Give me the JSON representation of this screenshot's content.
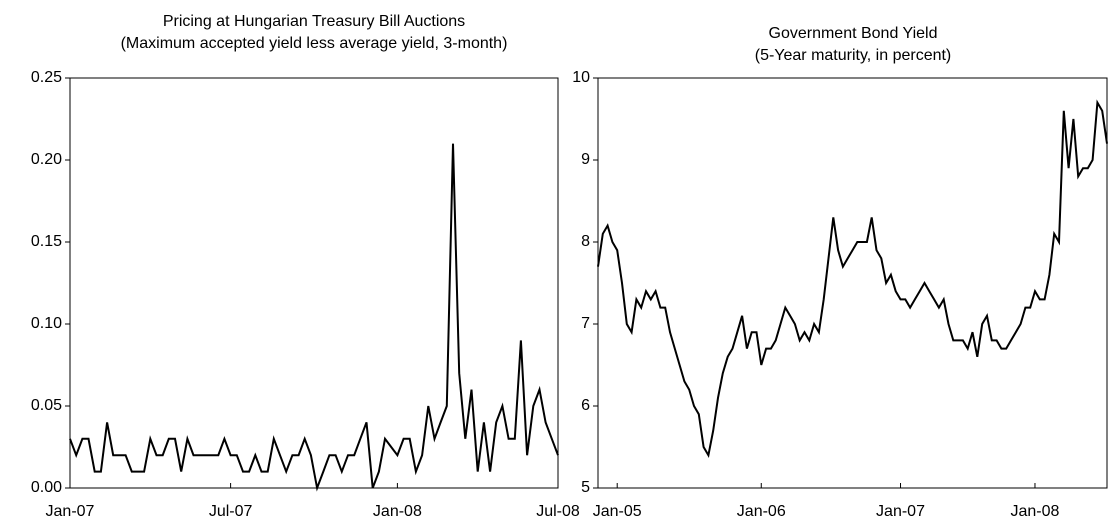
{
  "chart_data": [
    {
      "type": "line",
      "title": "Pricing at Hungarian Treasury Bill Auctions",
      "subtitle": "(Maximum accepted yield less average yield, 3-month)",
      "categories": [
        "Jan-07",
        null,
        null,
        null,
        null,
        null,
        null,
        null,
        null,
        null,
        null,
        null,
        null,
        null,
        null,
        null,
        null,
        null,
        null,
        null,
        null,
        null,
        null,
        null,
        null,
        null,
        "Jul-07",
        null,
        null,
        null,
        null,
        null,
        null,
        null,
        null,
        null,
        null,
        null,
        null,
        null,
        null,
        null,
        null,
        null,
        null,
        null,
        null,
        null,
        null,
        null,
        null,
        null,
        null,
        "Jan-08",
        null,
        null,
        null,
        null,
        null,
        null,
        null,
        null,
        null,
        null,
        null,
        null,
        null,
        null,
        null,
        null,
        null,
        null,
        null,
        null,
        null,
        null,
        null,
        null,
        null,
        "Jul-08"
      ],
      "values": [
        0.03,
        0.02,
        0.03,
        0.03,
        0.01,
        0.01,
        0.04,
        0.02,
        0.02,
        0.02,
        0.01,
        0.01,
        0.01,
        0.03,
        0.02,
        0.02,
        0.03,
        0.03,
        0.01,
        0.03,
        0.02,
        0.02,
        0.02,
        0.02,
        0.02,
        0.03,
        0.02,
        0.02,
        0.01,
        0.01,
        0.02,
        0.01,
        0.01,
        0.03,
        0.02,
        0.01,
        0.02,
        0.02,
        0.03,
        0.02,
        0,
        0.01,
        0.02,
        0.02,
        0.01,
        0.02,
        0.02,
        0.03,
        0.04,
        0,
        0.01,
        0.03,
        0.025,
        0.02,
        0.03,
        0.03,
        0.01,
        0.02,
        0.05,
        0.03,
        0.04,
        0.05,
        0.21,
        0.07,
        0.03,
        0.06,
        0.01,
        0.04,
        0.01,
        0.04,
        0.05,
        0.03,
        0.03,
        0.09,
        0.02,
        0.05,
        0.06,
        0.04,
        0.03,
        0.02
      ],
      "color": "#000000",
      "ylim": [
        0,
        0.25
      ],
      "yticks": [
        {
          "value": 0,
          "label": "0.00"
        },
        0.05,
        {
          "value": 0.1,
          "label": "0.10"
        },
        0.15,
        {
          "value": 0.2,
          "label": "0.20"
        },
        0.25
      ]
    },
    {
      "type": "line",
      "title": "Government Bond Yield",
      "subtitle": "(5-Year maturity, in percent)",
      "categories": [
        null,
        null,
        null,
        null,
        "Jan-05",
        null,
        null,
        null,
        null,
        null,
        null,
        null,
        null,
        null,
        null,
        null,
        null,
        null,
        null,
        null,
        null,
        null,
        null,
        null,
        null,
        null,
        null,
        null,
        null,
        null,
        null,
        null,
        null,
        null,
        "Jan-06",
        null,
        null,
        null,
        null,
        null,
        null,
        null,
        null,
        null,
        null,
        null,
        null,
        null,
        null,
        null,
        null,
        null,
        null,
        null,
        null,
        null,
        null,
        null,
        null,
        null,
        null,
        null,
        null,
        "Jan-07",
        null,
        null,
        null,
        null,
        null,
        null,
        null,
        null,
        null,
        null,
        null,
        null,
        null,
        null,
        null,
        null,
        null,
        null,
        null,
        null,
        null,
        null,
        null,
        null,
        null,
        null,
        null,
        "Jan-08",
        null,
        null,
        null,
        null,
        null,
        null,
        null,
        null,
        null,
        null,
        null,
        null,
        null,
        null,
        null
      ],
      "values": [
        7.7,
        8.1,
        8.2,
        8.0,
        7.9,
        7.5,
        7.0,
        6.9,
        7.3,
        7.2,
        7.4,
        7.3,
        7.4,
        7.2,
        7.2,
        6.9,
        6.7,
        6.5,
        6.3,
        6.2,
        6.0,
        5.9,
        5.5,
        5.4,
        5.7,
        6.1,
        6.4,
        6.6,
        6.7,
        6.9,
        7.1,
        6.7,
        6.9,
        6.9,
        6.5,
        6.7,
        6.7,
        6.8,
        7.0,
        7.2,
        7.1,
        7.0,
        6.8,
        6.9,
        6.8,
        7.0,
        6.9,
        7.3,
        7.8,
        8.3,
        7.9,
        7.7,
        7.8,
        7.9,
        8.0,
        8.0,
        8.0,
        8.3,
        7.9,
        7.8,
        7.5,
        7.6,
        7.4,
        7.3,
        7.3,
        7.2,
        7.3,
        7.4,
        7.5,
        7.4,
        7.3,
        7.2,
        7.3,
        7.0,
        6.8,
        6.8,
        6.8,
        6.7,
        6.9,
        6.6,
        7.0,
        7.1,
        6.8,
        6.8,
        6.7,
        6.7,
        6.8,
        6.9,
        7.0,
        7.2,
        7.2,
        7.4,
        7.3,
        7.3,
        7.6,
        8.1,
        8.0,
        9.6,
        8.9,
        9.5,
        8.8,
        8.9,
        8.9,
        9.0,
        9.7,
        9.6,
        9.2
      ],
      "color": "#000000",
      "ylim": [
        5,
        10
      ],
      "yticks": [
        5,
        6,
        7,
        8,
        9,
        10
      ]
    }
  ]
}
